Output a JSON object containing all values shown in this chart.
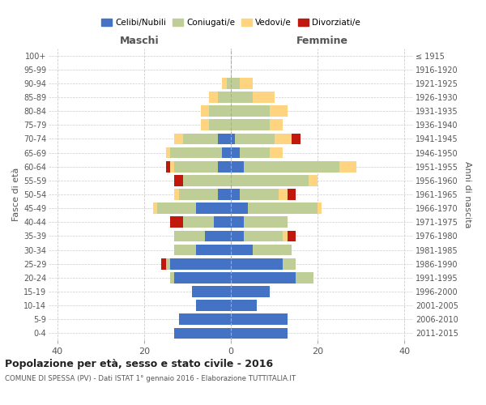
{
  "age_groups": [
    "0-4",
    "5-9",
    "10-14",
    "15-19",
    "20-24",
    "25-29",
    "30-34",
    "35-39",
    "40-44",
    "45-49",
    "50-54",
    "55-59",
    "60-64",
    "65-69",
    "70-74",
    "75-79",
    "80-84",
    "85-89",
    "90-94",
    "95-99",
    "100+"
  ],
  "birth_years": [
    "2011-2015",
    "2006-2010",
    "2001-2005",
    "1996-2000",
    "1991-1995",
    "1986-1990",
    "1981-1985",
    "1976-1980",
    "1971-1975",
    "1966-1970",
    "1961-1965",
    "1956-1960",
    "1951-1955",
    "1946-1950",
    "1941-1945",
    "1936-1940",
    "1931-1935",
    "1926-1930",
    "1921-1925",
    "1916-1920",
    "≤ 1915"
  ],
  "male": {
    "celibi": [
      13,
      12,
      8,
      9,
      13,
      14,
      8,
      6,
      4,
      8,
      3,
      0,
      3,
      2,
      3,
      0,
      0,
      0,
      0,
      0,
      0
    ],
    "coniugati": [
      0,
      0,
      0,
      0,
      1,
      1,
      5,
      7,
      7,
      9,
      9,
      11,
      10,
      12,
      8,
      5,
      5,
      3,
      1,
      0,
      0
    ],
    "vedovi": [
      0,
      0,
      0,
      0,
      0,
      0,
      0,
      0,
      0,
      1,
      1,
      0,
      1,
      1,
      2,
      2,
      2,
      2,
      1,
      0,
      0
    ],
    "divorziati": [
      0,
      0,
      0,
      0,
      0,
      1,
      0,
      0,
      3,
      0,
      0,
      2,
      1,
      0,
      0,
      0,
      0,
      0,
      0,
      0,
      0
    ]
  },
  "female": {
    "nubili": [
      13,
      13,
      6,
      9,
      15,
      12,
      5,
      3,
      3,
      4,
      2,
      0,
      3,
      2,
      1,
      0,
      0,
      0,
      0,
      0,
      0
    ],
    "coniugate": [
      0,
      0,
      0,
      0,
      4,
      3,
      9,
      9,
      10,
      16,
      9,
      18,
      22,
      7,
      9,
      9,
      9,
      5,
      2,
      0,
      0
    ],
    "vedove": [
      0,
      0,
      0,
      0,
      0,
      0,
      0,
      1,
      0,
      1,
      2,
      2,
      4,
      3,
      4,
      3,
      4,
      5,
      3,
      0,
      0
    ],
    "divorziate": [
      0,
      0,
      0,
      0,
      0,
      0,
      0,
      2,
      0,
      0,
      2,
      0,
      0,
      0,
      2,
      0,
      0,
      0,
      0,
      0,
      0
    ]
  },
  "colors": {
    "celibi_nubili": "#4472C4",
    "coniugati": "#BFCE96",
    "vedovi": "#FFD480",
    "divorziati": "#C0180C"
  },
  "xlim": 42,
  "title": "Popolazione per età, sesso e stato civile - 2016",
  "subtitle": "COMUNE DI SPESSA (PV) - Dati ISTAT 1° gennaio 2016 - Elaborazione TUTTITALIA.IT",
  "ylabel_left": "Fasce di età",
  "ylabel_right": "Anni di nascita",
  "xlabel_left": "Maschi",
  "xlabel_right": "Femmine",
  "bg_color": "#ffffff",
  "grid_color": "#cccccc",
  "bar_height": 0.8
}
